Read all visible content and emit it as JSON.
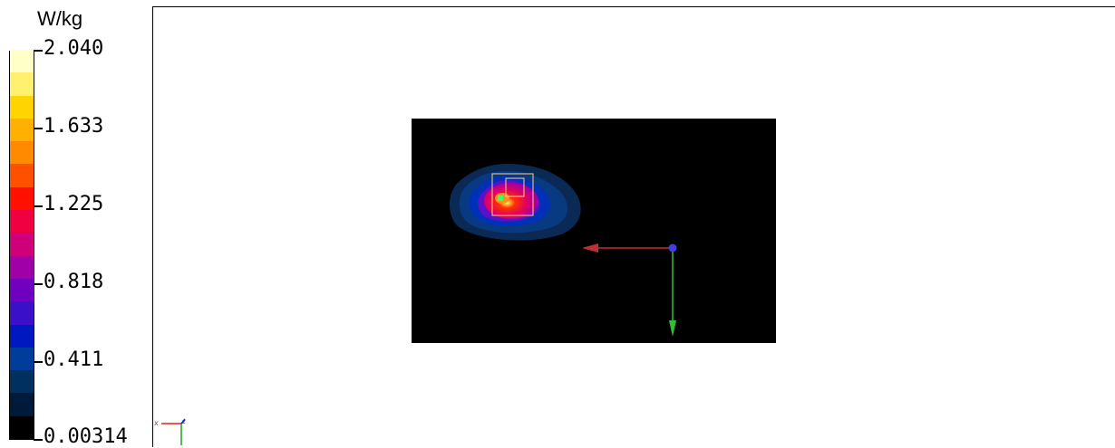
{
  "chart_data": {
    "type": "heatmap",
    "unit": "W/kg",
    "scale": {
      "min": 0.00314,
      "max": 2.04,
      "tick_labels": [
        "2.040",
        "1.633",
        "1.225",
        "0.818",
        "0.411",
        "0.00314"
      ],
      "levels": 15,
      "colors": [
        "#000000",
        "#001a3a",
        "#00305f",
        "#003c99",
        "#0018c0",
        "#3a10c8",
        "#7000c0",
        "#a000a8",
        "#d0007a",
        "#f00040",
        "#ff1000",
        "#ff5000",
        "#ff8a00",
        "#ffb000",
        "#ffd400",
        "#fff070",
        "#ffffc8"
      ]
    },
    "peak_value": 2.04,
    "axes": {
      "x": "red",
      "y": "green",
      "z": "blue"
    }
  }
}
